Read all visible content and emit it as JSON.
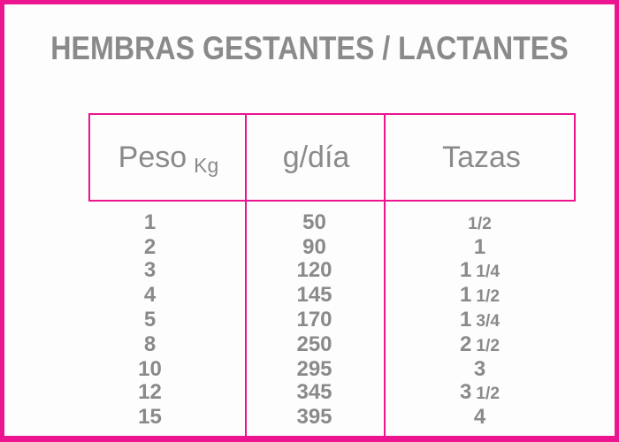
{
  "title": "HEMBRAS GESTANTES / LACTANTES",
  "colors": {
    "accent": "#EC148F",
    "text": "#8A8A8A",
    "background": "#FDFDFD"
  },
  "table": {
    "headers": {
      "peso": "Peso",
      "peso_unit": "Kg",
      "g_dia": "g/día",
      "tazas": "Tazas"
    },
    "rows": [
      {
        "peso": "1",
        "g_dia": "50",
        "tazas_whole": "",
        "tazas_frac": "1/2"
      },
      {
        "peso": "2",
        "g_dia": "90",
        "tazas_whole": "1",
        "tazas_frac": ""
      },
      {
        "peso": "3",
        "g_dia": "120",
        "tazas_whole": "1",
        "tazas_frac": "1/4"
      },
      {
        "peso": "4",
        "g_dia": "145",
        "tazas_whole": "1",
        "tazas_frac": "1/2"
      },
      {
        "peso": "5",
        "g_dia": "170",
        "tazas_whole": "1",
        "tazas_frac": "3/4"
      },
      {
        "peso": "8",
        "g_dia": "250",
        "tazas_whole": "2",
        "tazas_frac": "1/2"
      },
      {
        "peso": "10",
        "g_dia": "295",
        "tazas_whole": "3",
        "tazas_frac": ""
      },
      {
        "peso": "12",
        "g_dia": "345",
        "tazas_whole": "3",
        "tazas_frac": "1/2"
      },
      {
        "peso": "15",
        "g_dia": "395",
        "tazas_whole": "4",
        "tazas_frac": ""
      }
    ]
  },
  "chart_data": {
    "type": "table",
    "title": "HEMBRAS GESTANTES / LACTANTES",
    "columns": [
      "Peso Kg",
      "g/día",
      "Tazas"
    ],
    "rows": [
      [
        "1",
        "50",
        "1/2"
      ],
      [
        "2",
        "90",
        "1"
      ],
      [
        "3",
        "120",
        "1 1/4"
      ],
      [
        "4",
        "145",
        "1 1/2"
      ],
      [
        "5",
        "170",
        "1 3/4"
      ],
      [
        "8",
        "250",
        "2 1/2"
      ],
      [
        "10",
        "295",
        "3"
      ],
      [
        "12",
        "345",
        "3 1/2"
      ],
      [
        "15",
        "395",
        "4"
      ]
    ]
  }
}
